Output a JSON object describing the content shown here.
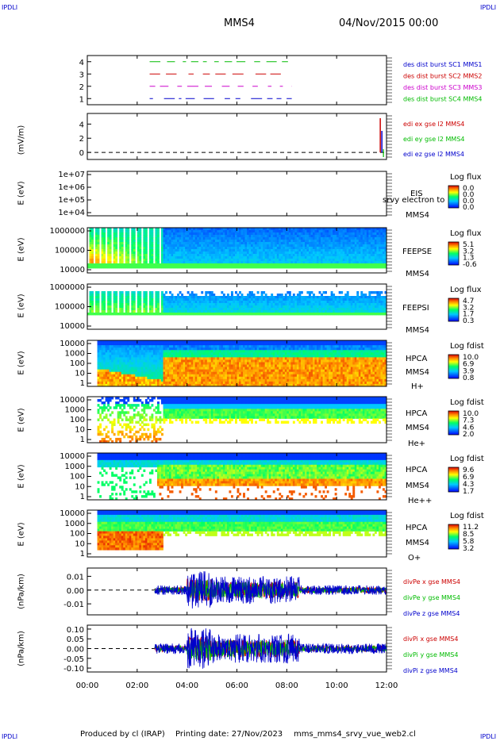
{
  "corners": {
    "tl": "IPDLI",
    "tr": "IPDLI",
    "bl": "IPDLI",
    "br": "IPDLI"
  },
  "header": {
    "spacecraft": "MMS4",
    "datetime": "04/Nov/2015 00:00"
  },
  "footer": {
    "produced": "Produced by cl (IRAP)",
    "printing": "Printing date: 27/Nov/2023",
    "file": "mms_mms4_srvy_vue_web2.cl"
  },
  "x_axis": {
    "ticks": [
      "00:00",
      "02:00",
      "04:00",
      "06:00",
      "08:00",
      "10:00",
      "12:00"
    ]
  },
  "colors": {
    "red": "#cc0000",
    "green": "#00bb00",
    "blue": "#0000cc",
    "magenta": "#cc00cc",
    "frame": "#000000"
  },
  "chart_data": [
    {
      "type": "line",
      "panel": "burst",
      "ylabel": "",
      "ylim": [
        0.5,
        4.5
      ],
      "yticks": [
        "4",
        "3",
        "2",
        "1"
      ],
      "series": [
        {
          "name": "des dist burst SC1 MMS1",
          "y": 1,
          "color": "#0000cc"
        },
        {
          "name": "des dist burst SC2 MMS2",
          "y": 3,
          "color": "#cc0000"
        },
        {
          "name": "des dist burst SC3 MMS3",
          "y": 2,
          "color": "#cc00cc"
        },
        {
          "name": "des dist burst SC4 MMS4",
          "y": 4,
          "color": "#00bb00"
        }
      ]
    },
    {
      "type": "line",
      "panel": "edi",
      "ylabel": "(mV/m)",
      "ylim": [
        -1,
        5.5
      ],
      "yticks": [
        "4",
        "2",
        "0"
      ],
      "series": [
        {
          "name": "edi ex gse l2 MMS4",
          "color": "#cc0000"
        },
        {
          "name": "edi ey gse l2 MMS4",
          "color": "#00bb00"
        },
        {
          "name": "edi ez gse l2 MMS4",
          "color": "#0000cc"
        }
      ]
    },
    {
      "type": "heatmap",
      "panel": "eis",
      "ylabel": "E (eV)",
      "yticks": [
        "1e+07",
        "1e+06",
        "1e+05",
        "1e+04"
      ],
      "labels": [
        "EIS",
        "srvy electron to",
        "MMS4"
      ],
      "colorbar": {
        "title": "Log flux",
        "values": [
          "0.0",
          "0.0",
          "0.0",
          "0.0"
        ]
      }
    },
    {
      "type": "heatmap",
      "panel": "feepse",
      "ylabel": "E (eV)",
      "yticks": [
        "1000000",
        "100000",
        "10000"
      ],
      "labels": [
        "FEEPSE",
        "MMS4"
      ],
      "colorbar": {
        "title": "Log flux",
        "values": [
          "5.1",
          "3.2",
          "1.3",
          "-0.6"
        ]
      }
    },
    {
      "type": "heatmap",
      "panel": "feepsi",
      "ylabel": "E (eV)",
      "yticks": [
        "1000000",
        "100000",
        "10000"
      ],
      "labels": [
        "FEEPSI",
        "MMS4"
      ],
      "colorbar": {
        "title": "Log flux",
        "values": [
          "4.7",
          "3.2",
          "1.7",
          "0.3"
        ]
      }
    },
    {
      "type": "heatmap",
      "panel": "hpca_h",
      "ylabel": "E (eV)",
      "yticks": [
        "10000",
        "1000",
        "100",
        "10",
        "1"
      ],
      "labels": [
        "HPCA",
        "MMS4",
        "H+"
      ],
      "colorbar": {
        "title": "Log fdist",
        "values": [
          "10.0",
          "6.9",
          "3.9",
          "0.8"
        ]
      }
    },
    {
      "type": "heatmap",
      "panel": "hpca_he",
      "ylabel": "E (eV)",
      "yticks": [
        "10000",
        "1000",
        "100",
        "10",
        "1"
      ],
      "labels": [
        "HPCA",
        "MMS4",
        "He+"
      ],
      "colorbar": {
        "title": "Log fdist",
        "values": [
          "10.0",
          "7.3",
          "4.6",
          "2.0"
        ]
      }
    },
    {
      "type": "heatmap",
      "panel": "hpca_hepp",
      "ylabel": "E (eV)",
      "yticks": [
        "10000",
        "1000",
        "100",
        "10",
        "1"
      ],
      "labels": [
        "HPCA",
        "MMS4",
        "He++"
      ],
      "colorbar": {
        "title": "Log fdist",
        "values": [
          "9.6",
          "6.9",
          "4.3",
          "1.7"
        ]
      }
    },
    {
      "type": "heatmap",
      "panel": "hpca_o",
      "ylabel": "E (eV)",
      "yticks": [
        "10000",
        "1000",
        "100",
        "10",
        "1"
      ],
      "labels": [
        "HPCA",
        "MMS4",
        "O+"
      ],
      "colorbar": {
        "title": "Log fdist",
        "values": [
          "11.2",
          "8.5",
          "5.8",
          "3.2"
        ]
      }
    },
    {
      "type": "line",
      "panel": "divpe",
      "ylabel": "(nPa/km)",
      "ylim": [
        -0.018,
        0.016
      ],
      "yticks": [
        "0.01",
        "0.00",
        "-0.01"
      ],
      "series": [
        {
          "name": "divPe x gse MMS4",
          "color": "#cc0000"
        },
        {
          "name": "divPe y gse MMS4",
          "color": "#00bb00"
        },
        {
          "name": "divPe z gse MMS4",
          "color": "#0000cc"
        }
      ]
    },
    {
      "type": "line",
      "panel": "divpi",
      "ylabel": "(nPa/km)",
      "ylim": [
        -0.12,
        0.12
      ],
      "yticks": [
        "0.10",
        "0.05",
        "0.00",
        "-0.05",
        "-0.10"
      ],
      "series": [
        {
          "name": "divPi x gse MMS4",
          "color": "#cc0000"
        },
        {
          "name": "divPi y gse MMS4",
          "color": "#00bb00"
        },
        {
          "name": "divPi z gse MMS4",
          "color": "#0000cc"
        }
      ]
    }
  ]
}
